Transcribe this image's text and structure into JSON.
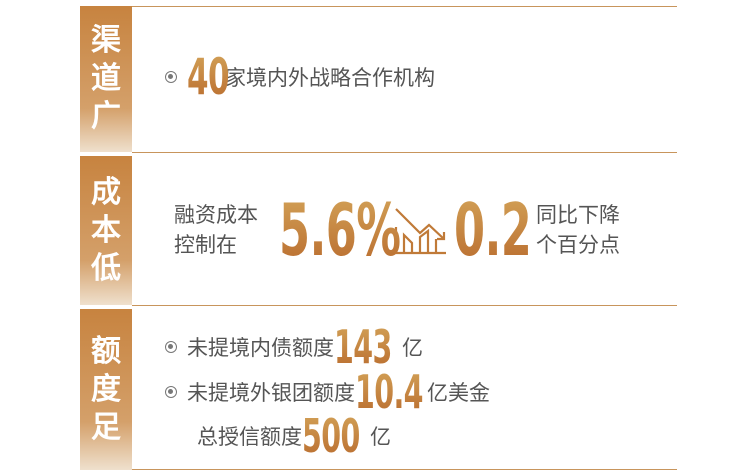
{
  "sections": [
    {
      "label": [
        "渠",
        "道",
        "广"
      ],
      "number": "40",
      "text": "家境内外战略合作机构"
    },
    {
      "label": [
        "成",
        "本",
        "低"
      ],
      "lead": [
        "融资成本",
        "控制在"
      ],
      "number": "5.6%",
      "icon": "chart-down-icon",
      "delta": "0.2",
      "tail": [
        "同比下降",
        "个百分点"
      ]
    },
    {
      "label": [
        "额",
        "度",
        "足"
      ],
      "items": [
        {
          "pre": "未提境内债额度",
          "number": "143",
          "post": "亿"
        },
        {
          "pre": "未提境外银团额度",
          "number": "10.4",
          "post": "亿美金"
        },
        {
          "pre": "总授信额度",
          "number": "500",
          "post": "亿"
        }
      ]
    }
  ],
  "colors": {
    "accent": "#c7833f",
    "line": "#c8955c",
    "text": "#555555"
  }
}
